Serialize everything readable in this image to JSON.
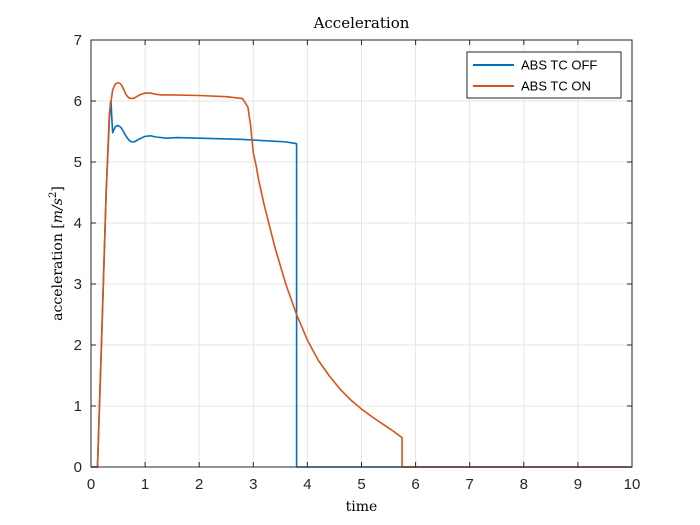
{
  "chart_data": {
    "type": "line",
    "title": "Acceleration",
    "xlabel": "time",
    "ylabel": {
      "prefix": "acceleration ",
      "unit_open": "[",
      "unit_base": "m/s",
      "unit_exp": "2",
      "unit_close": "]"
    },
    "xlim": [
      0,
      10
    ],
    "ylim": [
      0,
      7
    ],
    "xticks": [
      "0",
      "1",
      "2",
      "3",
      "4",
      "5",
      "6",
      "7",
      "8",
      "9",
      "10"
    ],
    "yticks": [
      "0",
      "1",
      "2",
      "3",
      "4",
      "5",
      "6",
      "7"
    ],
    "grid": true,
    "legend_position": "top-right",
    "series": [
      {
        "name": "ABS TC OFF",
        "color": "#0072BD",
        "x": [
          0,
          0.12,
          0.2,
          0.28,
          0.34,
          0.36,
          0.37,
          0.38,
          0.4,
          0.45,
          0.5,
          0.55,
          0.6,
          0.65,
          0.7,
          0.75,
          0.8,
          0.9,
          1.0,
          1.1,
          1.2,
          1.4,
          1.6,
          2.0,
          2.4,
          2.8,
          3.2,
          3.6,
          3.8,
          3.8,
          3.85,
          4.0,
          6.0,
          10.0
        ],
        "y": [
          0,
          0,
          2.2,
          4.5,
          5.7,
          5.98,
          6.0,
          5.8,
          5.48,
          5.58,
          5.6,
          5.57,
          5.5,
          5.42,
          5.36,
          5.33,
          5.33,
          5.38,
          5.42,
          5.43,
          5.41,
          5.39,
          5.4,
          5.39,
          5.38,
          5.37,
          5.35,
          5.33,
          5.3,
          0,
          0,
          0,
          0,
          0
        ]
      },
      {
        "name": "ABS TC ON",
        "color": "#D95319",
        "x": [
          0,
          0.12,
          0.2,
          0.28,
          0.34,
          0.4,
          0.45,
          0.5,
          0.55,
          0.6,
          0.65,
          0.7,
          0.75,
          0.8,
          0.9,
          1.0,
          1.1,
          1.2,
          1.3,
          1.5,
          2.0,
          2.5,
          2.8,
          2.9,
          2.95,
          3.0,
          3.05,
          3.1,
          3.2,
          3.3,
          3.4,
          3.5,
          3.6,
          3.7,
          3.8,
          4.0,
          4.2,
          4.4,
          4.6,
          4.8,
          5.0,
          5.2,
          5.4,
          5.6,
          5.75,
          5.75,
          5.8,
          6.0,
          10.0
        ],
        "y": [
          0,
          0,
          2.2,
          4.5,
          5.8,
          6.18,
          6.28,
          6.3,
          6.28,
          6.2,
          6.1,
          6.05,
          6.04,
          6.05,
          6.1,
          6.13,
          6.13,
          6.11,
          6.1,
          6.1,
          6.09,
          6.07,
          6.04,
          5.9,
          5.6,
          5.15,
          4.95,
          4.7,
          4.3,
          3.95,
          3.6,
          3.3,
          3.0,
          2.75,
          2.5,
          2.08,
          1.75,
          1.5,
          1.28,
          1.1,
          0.95,
          0.82,
          0.7,
          0.58,
          0.48,
          0,
          0,
          0,
          0
        ]
      }
    ]
  }
}
